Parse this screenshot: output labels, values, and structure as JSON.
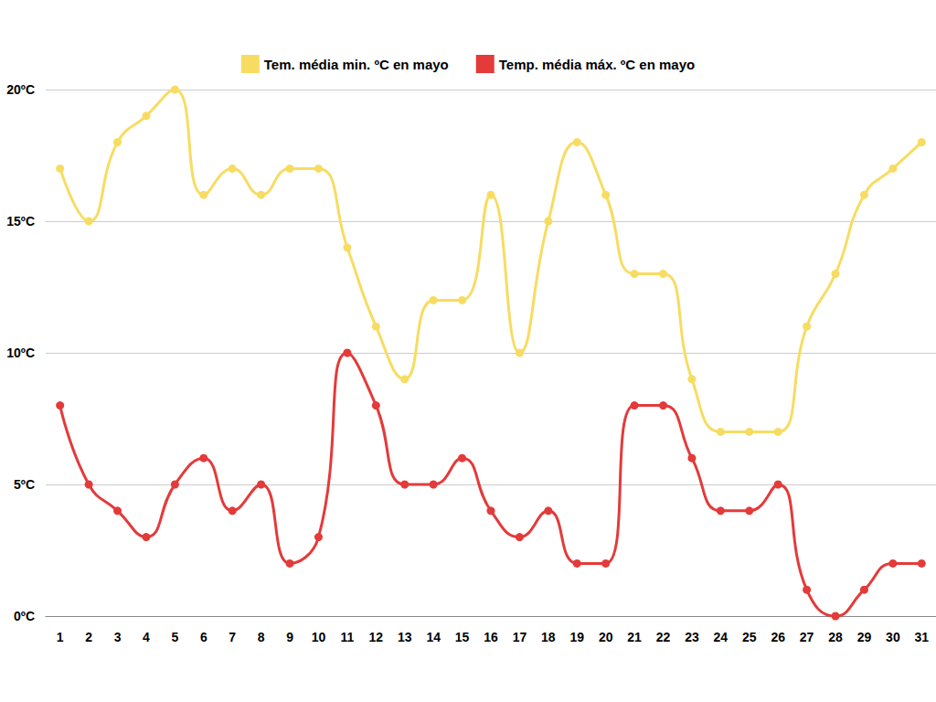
{
  "chart_data": {
    "type": "line",
    "categories": [
      "1",
      "2",
      "3",
      "4",
      "5",
      "6",
      "7",
      "8",
      "9",
      "10",
      "11",
      "12",
      "13",
      "14",
      "15",
      "16",
      "17",
      "18",
      "19",
      "20",
      "21",
      "22",
      "23",
      "24",
      "25",
      "26",
      "27",
      "28",
      "29",
      "30",
      "31"
    ],
    "series": [
      {
        "name": "Tem. média min. ºC en mayo",
        "color": "#f7dc62",
        "values": [
          17,
          15,
          18,
          19,
          20,
          16,
          17,
          16,
          17,
          17,
          14,
          11,
          9,
          12,
          12,
          16,
          10,
          15,
          18,
          16,
          13,
          13,
          9,
          7,
          7,
          7,
          11,
          13,
          16,
          17,
          18
        ]
      },
      {
        "name": "Temp. média máx. ºC en mayo",
        "color": "#e43a3a",
        "values": [
          8,
          5,
          4,
          3,
          5,
          6,
          4,
          5,
          2,
          3,
          10,
          8,
          5,
          5,
          6,
          4,
          3,
          4,
          2,
          2,
          8,
          8,
          6,
          4,
          4,
          5,
          1,
          0,
          1,
          2,
          2
        ]
      }
    ],
    "ylim": [
      0,
      20
    ],
    "yticks": [
      {
        "value": 0,
        "label": "0ºC"
      },
      {
        "value": 5,
        "label": "5ºC"
      },
      {
        "value": 10,
        "label": "10ºC"
      },
      {
        "value": 15,
        "label": "15ºC"
      },
      {
        "value": 20,
        "label": "20ºC"
      }
    ],
    "grid": true,
    "legend": "top",
    "marker": "circle",
    "line_style": "solid"
  }
}
